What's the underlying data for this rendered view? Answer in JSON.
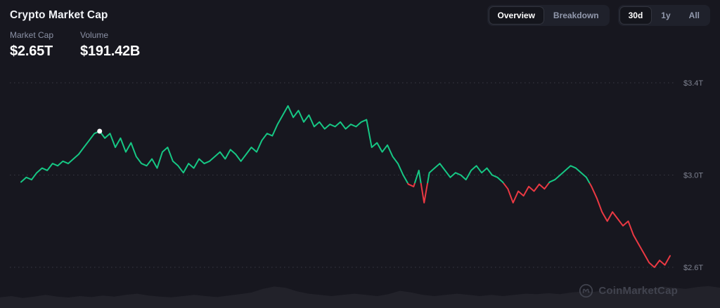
{
  "header": {
    "title": "Crypto Market Cap",
    "view_toggle": [
      {
        "label": "Overview",
        "active": true
      },
      {
        "label": "Breakdown",
        "active": false
      }
    ],
    "range_toggle": [
      {
        "label": "30d",
        "active": true
      },
      {
        "label": "1y",
        "active": false
      },
      {
        "label": "All",
        "active": false
      }
    ]
  },
  "stats": {
    "market_cap": {
      "label": "Market Cap",
      "value": "$2.65T"
    },
    "volume": {
      "label": "Volume",
      "value": "$191.42B"
    }
  },
  "watermark": {
    "text": "CoinMarketCap"
  },
  "colors": {
    "background": "#17171f",
    "green": "#16c784",
    "red": "#ea3943",
    "grid": "#3a3a44",
    "axis_label": "#7e8290",
    "volume_fill": "#22222a",
    "marker": "#ffffff"
  },
  "chart_data": {
    "type": "line",
    "title": "Crypto Market Cap",
    "period": "30d",
    "grid": "horizontal-dotted",
    "legend": "none",
    "ylim": [
      2.55,
      3.45
    ],
    "yticks": [
      {
        "label": "$3.4T",
        "value": 3.4
      },
      {
        "label": "$3.0T",
        "value": 3.0
      },
      {
        "label": "$2.6T",
        "value": 2.6
      }
    ],
    "baseline": 2.965,
    "marker_index": 15,
    "values": [
      2.97,
      2.99,
      2.98,
      3.01,
      3.03,
      3.02,
      3.05,
      3.04,
      3.06,
      3.05,
      3.07,
      3.09,
      3.12,
      3.15,
      3.18,
      3.19,
      3.16,
      3.18,
      3.12,
      3.16,
      3.1,
      3.14,
      3.08,
      3.05,
      3.04,
      3.07,
      3.03,
      3.1,
      3.12,
      3.06,
      3.04,
      3.01,
      3.05,
      3.03,
      3.07,
      3.05,
      3.06,
      3.08,
      3.1,
      3.07,
      3.11,
      3.09,
      3.06,
      3.09,
      3.12,
      3.1,
      3.15,
      3.18,
      3.17,
      3.22,
      3.26,
      3.3,
      3.25,
      3.28,
      3.23,
      3.26,
      3.21,
      3.23,
      3.2,
      3.22,
      3.21,
      3.23,
      3.2,
      3.22,
      3.21,
      3.23,
      3.24,
      3.12,
      3.14,
      3.1,
      3.13,
      3.08,
      3.05,
      3.0,
      2.96,
      2.95,
      3.02,
      2.88,
      3.01,
      3.03,
      3.05,
      3.02,
      2.99,
      3.01,
      3.0,
      2.98,
      3.02,
      3.04,
      3.01,
      3.03,
      3.0,
      2.99,
      2.97,
      2.94,
      2.88,
      2.93,
      2.91,
      2.95,
      2.93,
      2.96,
      2.94,
      2.97,
      2.98,
      3.0,
      3.02,
      3.04,
      3.03,
      3.01,
      2.99,
      2.95,
      2.9,
      2.84,
      2.8,
      2.84,
      2.81,
      2.78,
      2.8,
      2.74,
      2.7,
      2.66,
      2.62,
      2.6,
      2.63,
      2.61,
      2.65
    ],
    "volume_profile": [
      0.45,
      0.5,
      0.42,
      0.48,
      0.55,
      0.48,
      0.44,
      0.5,
      0.46,
      0.52,
      0.48,
      0.55,
      0.6,
      0.52,
      0.48,
      0.45,
      0.5,
      0.55,
      0.5,
      0.46,
      0.52,
      0.58,
      0.65,
      0.8,
      0.9,
      0.85,
      0.7,
      0.6,
      0.55,
      0.5,
      0.55,
      0.6,
      0.55,
      0.5,
      0.58,
      0.72,
      0.65,
      0.55,
      0.5,
      0.55,
      0.6,
      0.55,
      0.5,
      0.55,
      0.5,
      0.55,
      0.6,
      0.58,
      0.62,
      0.58,
      0.65,
      0.7,
      0.68,
      0.75,
      0.8,
      0.75,
      0.85,
      0.8,
      0.9,
      0.85,
      0.8,
      0.88,
      0.92,
      0.85
    ]
  }
}
